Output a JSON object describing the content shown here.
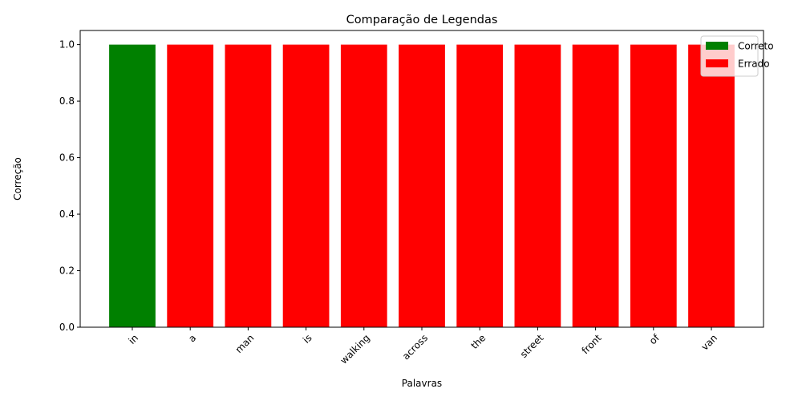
{
  "chart_data": {
    "type": "bar",
    "title": "Comparação de Legendas",
    "xlabel": "Palavras",
    "ylabel": "Correção",
    "categories": [
      "in",
      "a",
      "man",
      "is",
      "walking",
      "across",
      "the",
      "street",
      "front",
      "of",
      "van"
    ],
    "values": [
      1,
      1,
      1,
      1,
      1,
      1,
      1,
      1,
      1,
      1,
      1
    ],
    "status": [
      "Correto",
      "Errado",
      "Errado",
      "Errado",
      "Errado",
      "Errado",
      "Errado",
      "Errado",
      "Errado",
      "Errado",
      "Errado"
    ],
    "ylim": [
      0,
      1.05
    ],
    "yticks": [
      "0.0",
      "0.2",
      "0.4",
      "0.6",
      "0.8",
      "1.0"
    ],
    "grid": false,
    "legend": {
      "placement": "top-right",
      "entries": [
        {
          "label": "Correto",
          "color": "#008000"
        },
        {
          "label": "Errado",
          "color": "#ff0000"
        }
      ]
    }
  }
}
